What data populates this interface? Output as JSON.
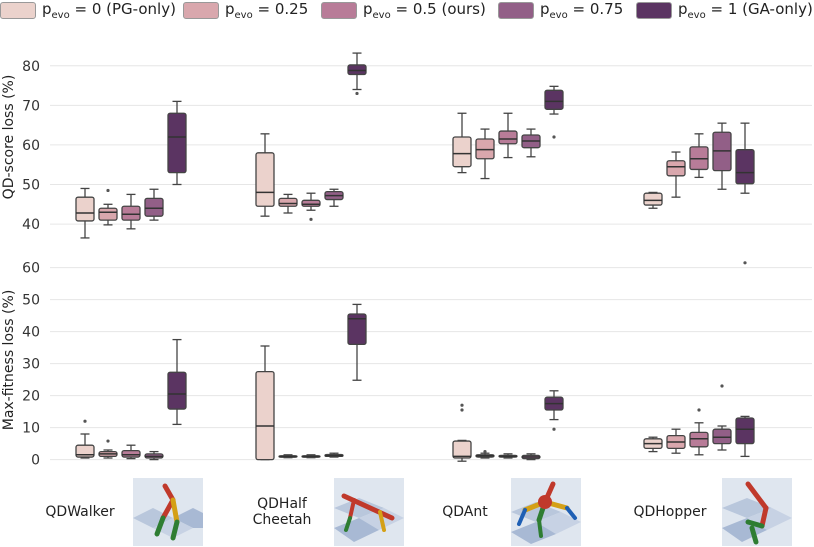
{
  "legend": [
    {
      "prefix": "p",
      "sub": "evo",
      "suffix": " = 0 (PG-only)",
      "color": "#ebd2cc"
    },
    {
      "prefix": "p",
      "sub": "evo",
      "suffix": " = 0.25",
      "color": "#d9a7ad"
    },
    {
      "prefix": "p",
      "sub": "evo",
      "suffix": " = 0.5 (ours)",
      "color": "#b87c98"
    },
    {
      "prefix": "p",
      "sub": "evo",
      "suffix": " = 0.75",
      "color": "#925f87"
    },
    {
      "prefix": "p",
      "sub": "evo",
      "suffix": " = 1 (GA-only)",
      "color": "#5b3462"
    }
  ],
  "environments": [
    {
      "label": "QDWalker",
      "icon": "walker-robot-icon"
    },
    {
      "label": "QDHalf Cheetah",
      "line1": "QDHalf",
      "line2": "Cheetah",
      "icon": "halfcheetah-robot-icon"
    },
    {
      "label": "QDAnt",
      "icon": "ant-robot-icon"
    },
    {
      "label": "QDHopper",
      "icon": "hopper-robot-icon"
    }
  ],
  "chart_data": [
    {
      "type": "box",
      "ylabel": "QD-score loss (%)",
      "ylim": [
        38,
        86
      ],
      "yticks": [
        40,
        50,
        60,
        70,
        80
      ],
      "grid": true,
      "categories": [
        "QDWalker",
        "QDHalf Cheetah",
        "QDAnt",
        "QDHopper"
      ],
      "series": [
        {
          "name": "p_evo = 0 (PG-only)",
          "boxes": [
            {
              "min": 36.5,
              "q1": 40.8,
              "median": 42.8,
              "q3": 46.8,
              "max": 49.0,
              "outliers": []
            },
            {
              "min": 42.0,
              "q1": 44.5,
              "median": 48.0,
              "q3": 58.0,
              "max": 62.8,
              "outliers": []
            },
            {
              "min": 53.0,
              "q1": 54.5,
              "median": 57.8,
              "q3": 62.0,
              "max": 68.0,
              "outliers": []
            },
            {
              "min": 44.0,
              "q1": 44.8,
              "median": 46.0,
              "q3": 47.8,
              "max": 48.0,
              "outliers": []
            }
          ]
        },
        {
          "name": "p_evo = 0.25",
          "boxes": [
            {
              "min": 39.8,
              "q1": 41.0,
              "median": 43.0,
              "q3": 44.0,
              "max": 45.0,
              "outliers": [
                48.5
              ]
            },
            {
              "min": 42.8,
              "q1": 44.5,
              "median": 45.2,
              "q3": 46.5,
              "max": 47.5,
              "outliers": []
            },
            {
              "min": 51.5,
              "q1": 56.5,
              "median": 58.8,
              "q3": 61.5,
              "max": 64.0,
              "outliers": []
            },
            {
              "min": 46.8,
              "q1": 52.2,
              "median": 54.5,
              "q3": 56.0,
              "max": 58.2,
              "outliers": []
            }
          ]
        },
        {
          "name": "p_evo = 0.5 (ours)",
          "boxes": [
            {
              "min": 38.8,
              "q1": 41.0,
              "median": 42.5,
              "q3": 44.5,
              "max": 47.5,
              "outliers": []
            },
            {
              "min": 43.5,
              "q1": 44.5,
              "median": 45.0,
              "q3": 46.0,
              "max": 47.8,
              "outliers": [
                41.2
              ]
            },
            {
              "min": 56.8,
              "q1": 60.3,
              "median": 61.5,
              "q3": 63.5,
              "max": 68.0,
              "outliers": []
            },
            {
              "min": 51.8,
              "q1": 53.8,
              "median": 56.5,
              "q3": 59.5,
              "max": 62.8,
              "outliers": []
            }
          ]
        },
        {
          "name": "p_evo = 0.75",
          "boxes": [
            {
              "min": 41.0,
              "q1": 42.0,
              "median": 44.0,
              "q3": 46.5,
              "max": 48.8,
              "outliers": []
            },
            {
              "min": 44.5,
              "q1": 46.2,
              "median": 47.2,
              "q3": 48.2,
              "max": 48.8,
              "outliers": []
            },
            {
              "min": 57.0,
              "q1": 59.3,
              "median": 61.0,
              "q3": 62.5,
              "max": 64.0,
              "outliers": []
            },
            {
              "min": 48.8,
              "q1": 53.5,
              "median": 58.5,
              "q3": 63.2,
              "max": 65.5,
              "outliers": []
            }
          ]
        },
        {
          "name": "p_evo = 1 (GA-only)",
          "boxes": [
            {
              "min": 50.0,
              "q1": 53.0,
              "median": 62.0,
              "q3": 68.0,
              "max": 71.0,
              "outliers": []
            },
            {
              "min": 74.0,
              "q1": 77.8,
              "median": 78.8,
              "q3": 80.2,
              "max": 83.2,
              "outliers": [
                73.0
              ]
            },
            {
              "min": 67.8,
              "q1": 69.0,
              "median": 71.0,
              "q3": 73.8,
              "max": 74.8,
              "outliers": [
                62.0
              ]
            },
            {
              "min": 47.8,
              "q1": 50.2,
              "median": 53.0,
              "q3": 58.8,
              "max": 65.5,
              "outliers": []
            }
          ]
        }
      ]
    },
    {
      "type": "box",
      "ylabel": "Max-fitness loss (%)",
      "ylim": [
        -2,
        63
      ],
      "yticks": [
        0,
        10,
        20,
        30,
        40,
        50,
        60
      ],
      "grid": true,
      "categories": [
        "QDWalker",
        "QDHalf Cheetah",
        "QDAnt",
        "QDHopper"
      ],
      "series": [
        {
          "name": "p_evo = 0 (PG-only)",
          "boxes": [
            {
              "min": 0.5,
              "q1": 0.8,
              "median": 1.5,
              "q3": 4.5,
              "max": 8.0,
              "outliers": [
                12.0
              ]
            },
            {
              "min": 0.0,
              "q1": 0.0,
              "median": 10.5,
              "q3": 27.5,
              "max": 35.5,
              "outliers": []
            },
            {
              "min": -0.5,
              "q1": 0.5,
              "median": 1.0,
              "q3": 5.8,
              "max": 6.0,
              "outliers": [
                15.5,
                17.0
              ]
            },
            {
              "min": 2.5,
              "q1": 3.5,
              "median": 5.0,
              "q3": 6.5,
              "max": 7.0,
              "outliers": []
            }
          ]
        },
        {
          "name": "p_evo = 0.25",
          "boxes": [
            {
              "min": 0.5,
              "q1": 1.0,
              "median": 1.8,
              "q3": 2.5,
              "max": 3.0,
              "outliers": [
                5.8
              ]
            },
            {
              "min": 0.6,
              "q1": 0.8,
              "median": 1.0,
              "q3": 1.2,
              "max": 1.5,
              "outliers": []
            },
            {
              "min": 0.5,
              "q1": 0.8,
              "median": 1.2,
              "q3": 1.5,
              "max": 2.0,
              "outliers": [
                2.5
              ]
            },
            {
              "min": 2.0,
              "q1": 3.5,
              "median": 5.5,
              "q3": 7.5,
              "max": 9.5,
              "outliers": []
            }
          ]
        },
        {
          "name": "p_evo = 0.5 (ours)",
          "boxes": [
            {
              "min": 0.3,
              "q1": 0.8,
              "median": 1.5,
              "q3": 2.8,
              "max": 4.5,
              "outliers": []
            },
            {
              "min": 0.6,
              "q1": 0.8,
              "median": 1.0,
              "q3": 1.2,
              "max": 1.5,
              "outliers": []
            },
            {
              "min": 0.5,
              "q1": 0.8,
              "median": 1.0,
              "q3": 1.3,
              "max": 1.8,
              "outliers": []
            },
            {
              "min": 1.5,
              "q1": 4.0,
              "median": 6.5,
              "q3": 8.5,
              "max": 11.5,
              "outliers": [
                15.5
              ]
            }
          ]
        },
        {
          "name": "p_evo = 0.75",
          "boxes": [
            {
              "min": 0.0,
              "q1": 0.5,
              "median": 1.0,
              "q3": 1.8,
              "max": 2.5,
              "outliers": []
            },
            {
              "min": 0.8,
              "q1": 1.0,
              "median": 1.2,
              "q3": 1.6,
              "max": 2.0,
              "outliers": []
            },
            {
              "min": 0.0,
              "q1": 0.3,
              "median": 0.8,
              "q3": 1.3,
              "max": 1.8,
              "outliers": []
            },
            {
              "min": 3.0,
              "q1": 5.0,
              "median": 7.0,
              "q3": 9.5,
              "max": 10.5,
              "outliers": [
                23.0
              ]
            }
          ]
        },
        {
          "name": "p_evo = 1 (GA-only)",
          "boxes": [
            {
              "min": 11.0,
              "q1": 15.8,
              "median": 20.5,
              "q3": 27.3,
              "max": 37.5,
              "outliers": []
            },
            {
              "min": 24.8,
              "q1": 36.0,
              "median": 44.0,
              "q3": 45.5,
              "max": 48.5,
              "outliers": []
            },
            {
              "min": 12.5,
              "q1": 15.5,
              "median": 17.5,
              "q3": 19.5,
              "max": 21.5,
              "outliers": [
                9.5
              ]
            },
            {
              "min": 1.0,
              "q1": 5.0,
              "median": 9.5,
              "q3": 13.0,
              "max": 13.5,
              "outliers": [
                61.5
              ]
            }
          ]
        }
      ]
    }
  ]
}
